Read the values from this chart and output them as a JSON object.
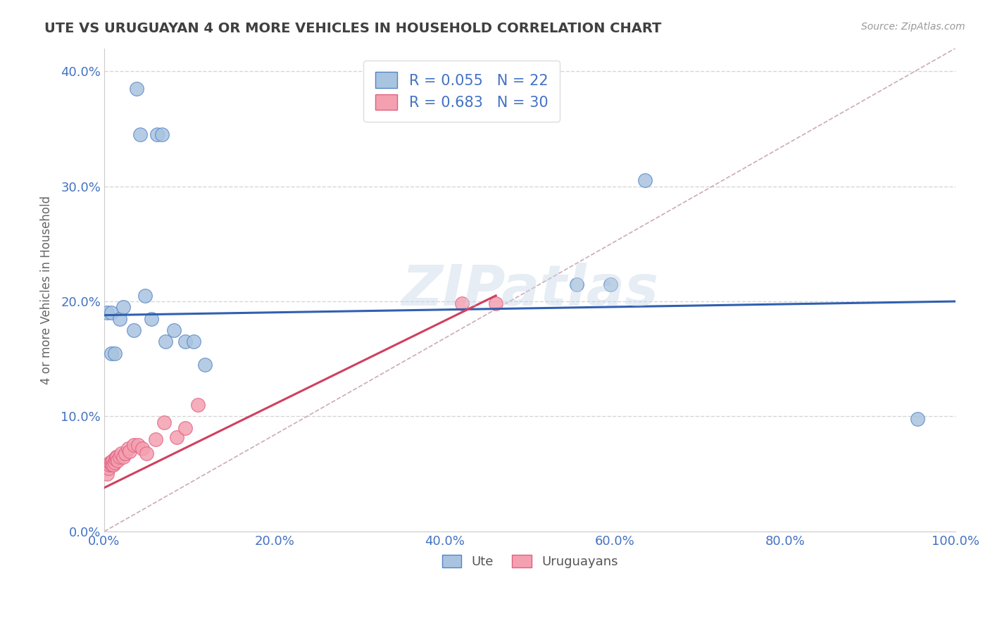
{
  "title": "UTE VS URUGUAYAN 4 OR MORE VEHICLES IN HOUSEHOLD CORRELATION CHART",
  "source": "Source: ZipAtlas.com",
  "xlabel_label": "Ute",
  "xlabel2_label": "Uruguayans",
  "ylabel": "4 or more Vehicles in Household",
  "watermark": "ZIPatlas",
  "ute_R": 0.055,
  "ute_N": 22,
  "uru_R": 0.683,
  "uru_N": 30,
  "xlim": [
    0.0,
    1.0
  ],
  "ylim": [
    0.0,
    0.42
  ],
  "xticks": [
    0.0,
    0.2,
    0.4,
    0.6,
    0.8,
    1.0
  ],
  "xtick_labels": [
    "0.0%",
    "20.0%",
    "40.0%",
    "60.0%",
    "80.0%",
    "100.0%"
  ],
  "yticks": [
    0.0,
    0.1,
    0.2,
    0.3,
    0.4
  ],
  "ytick_labels": [
    "0.0%",
    "10.0%",
    "20.0%",
    "30.0%",
    "40.0%"
  ],
  "ute_color": "#a8c4e0",
  "uru_color": "#f4a0b0",
  "ute_edge_color": "#5585c5",
  "uru_edge_color": "#e06080",
  "ute_line_color": "#3060b0",
  "uru_line_color": "#d04060",
  "diag_line_color": "#c8a0b0",
  "grid_color": "#cccccc",
  "title_color": "#404040",
  "axis_tick_color": "#4472c4",
  "ute_scatter_x": [
    0.038,
    0.042,
    0.062,
    0.068,
    0.003,
    0.008,
    0.018,
    0.022,
    0.035,
    0.048,
    0.055,
    0.072,
    0.082,
    0.095,
    0.105,
    0.118,
    0.008,
    0.012,
    0.955,
    0.555,
    0.595,
    0.635
  ],
  "ute_scatter_y": [
    0.385,
    0.345,
    0.345,
    0.345,
    0.19,
    0.19,
    0.185,
    0.195,
    0.175,
    0.205,
    0.185,
    0.165,
    0.175,
    0.165,
    0.165,
    0.145,
    0.155,
    0.155,
    0.098,
    0.215,
    0.215,
    0.305
  ],
  "uru_scatter_x": [
    0.003,
    0.005,
    0.006,
    0.007,
    0.008,
    0.009,
    0.01,
    0.011,
    0.012,
    0.013,
    0.014,
    0.015,
    0.016,
    0.018,
    0.02,
    0.022,
    0.025,
    0.028,
    0.03,
    0.035,
    0.04,
    0.045,
    0.05,
    0.06,
    0.07,
    0.085,
    0.095,
    0.11,
    0.42,
    0.46
  ],
  "uru_scatter_y": [
    0.05,
    0.055,
    0.058,
    0.06,
    0.06,
    0.058,
    0.062,
    0.058,
    0.06,
    0.063,
    0.065,
    0.065,
    0.062,
    0.065,
    0.068,
    0.065,
    0.068,
    0.072,
    0.07,
    0.075,
    0.075,
    0.072,
    0.068,
    0.08,
    0.095,
    0.082,
    0.09,
    0.11,
    0.198,
    0.198
  ],
  "ute_line_x0": 0.0,
  "ute_line_y0": 0.188,
  "ute_line_x1": 1.0,
  "ute_line_y1": 0.2,
  "uru_line_x0": 0.0,
  "uru_line_y0": 0.038,
  "uru_line_x1": 0.46,
  "uru_line_y1": 0.205
}
